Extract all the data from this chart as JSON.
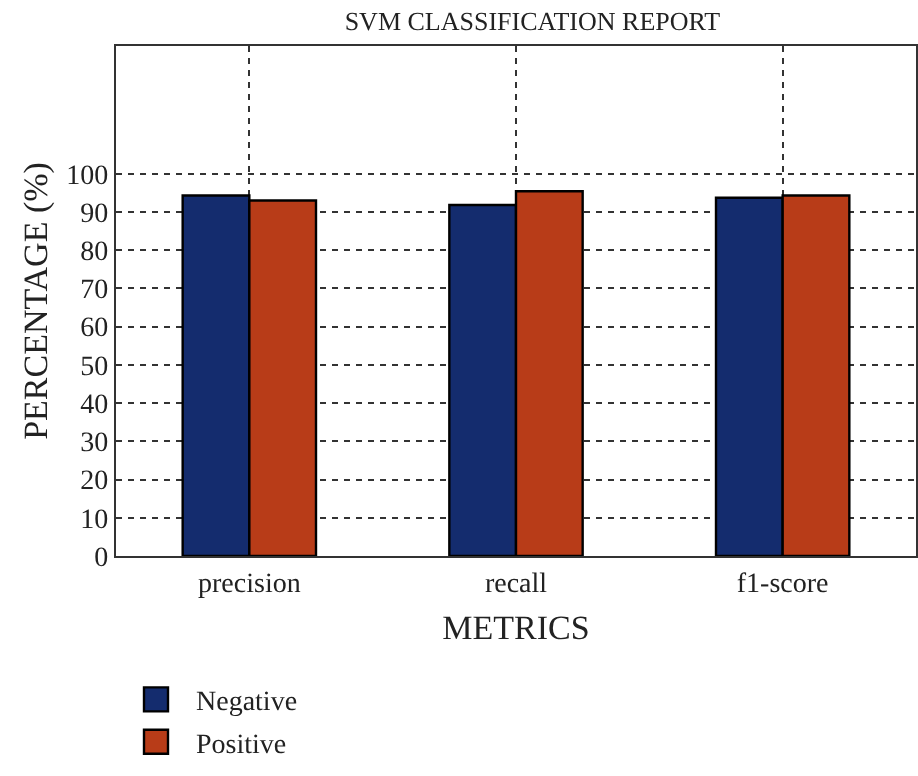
{
  "chart_data": {
    "type": "bar",
    "title": "SVM CLASSIFICATION REPORT",
    "xlabel": "METRICS",
    "ylabel": "PERCENTAGE (%)",
    "categories": [
      "precision",
      "recall",
      "f1-score"
    ],
    "series": [
      {
        "name": "Negative",
        "color": "#142c6e",
        "values": [
          94.3,
          91.8,
          93.7
        ]
      },
      {
        "name": "Positive",
        "color": "#b83c18",
        "values": [
          93.0,
          95.4,
          94.3
        ]
      }
    ],
    "ylim": [
      0,
      133.4
    ],
    "yticks": [
      0,
      10,
      20,
      30,
      40,
      50,
      60,
      70,
      80,
      90,
      100
    ],
    "grid": true,
    "legend": "bottom left"
  }
}
